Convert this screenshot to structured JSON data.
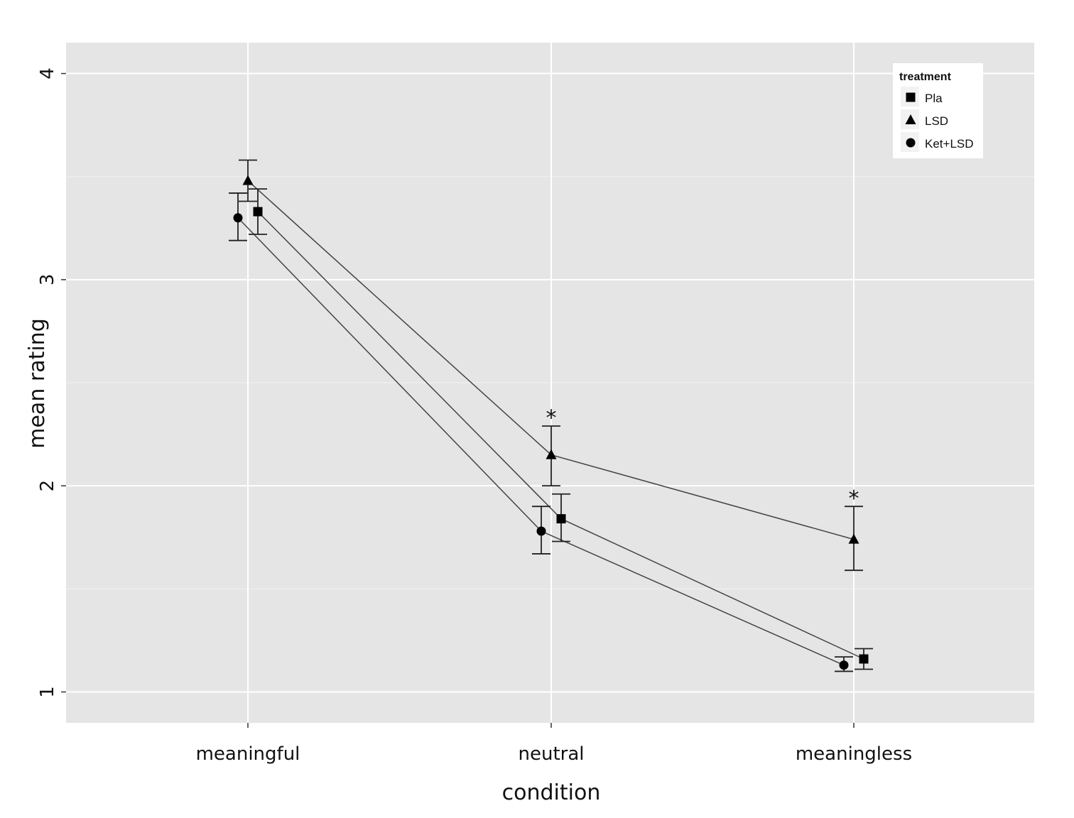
{
  "chart_data": {
    "type": "line",
    "title": "",
    "xlabel": "condition",
    "ylabel": "mean rating",
    "categories": [
      "meaningful",
      "neutral",
      "meaningless"
    ],
    "y_ticks": [
      "1",
      "2",
      "3",
      "4"
    ],
    "ylim": [
      0.85,
      4.15
    ],
    "grid": true,
    "legend": {
      "title": "treatment",
      "position": "top-right"
    },
    "series": [
      {
        "name": "Pla",
        "marker": "square",
        "values": [
          3.33,
          1.84,
          1.16
        ],
        "err_low": [
          3.22,
          1.73,
          1.11
        ],
        "err_high": [
          3.44,
          1.96,
          1.21
        ]
      },
      {
        "name": "LSD",
        "marker": "triangle",
        "values": [
          3.48,
          2.15,
          1.74
        ],
        "err_low": [
          3.38,
          2.0,
          1.59
        ],
        "err_high": [
          3.58,
          2.29,
          1.9
        ]
      },
      {
        "name": "Ket+LSD",
        "marker": "circle",
        "values": [
          3.3,
          1.78,
          1.13
        ],
        "err_low": [
          3.19,
          1.67,
          1.1
        ],
        "err_high": [
          3.42,
          1.9,
          1.17
        ]
      }
    ],
    "annotations": [
      {
        "text": "*",
        "category": "neutral",
        "y": 2.35
      },
      {
        "text": "*",
        "category": "meaningless",
        "y": 1.96
      }
    ]
  }
}
